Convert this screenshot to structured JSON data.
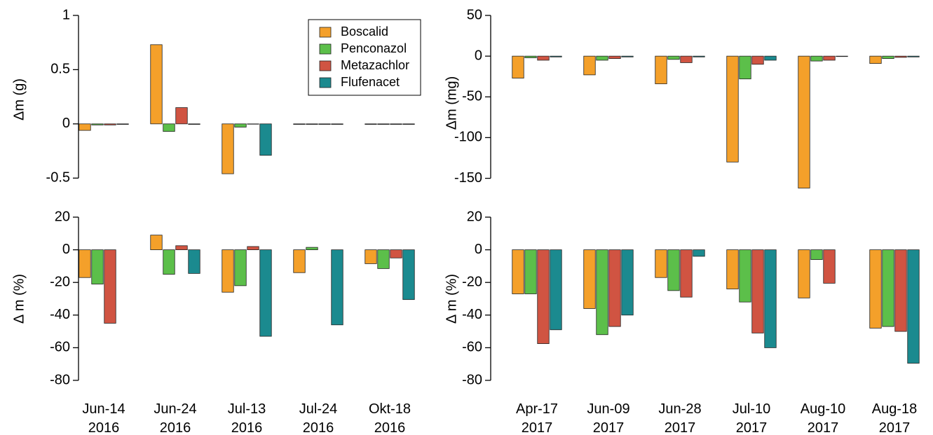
{
  "chart_data": [
    {
      "type": "bar",
      "ylabel": "Δm (g)",
      "legend": "top-right",
      "categories": [
        null,
        null,
        null,
        null,
        null
      ],
      "series": [
        {
          "name": "Boscalid",
          "color": "#f4a02a",
          "values": [
            -0.06,
            0.73,
            -0.46,
            -0.005,
            -0.005
          ]
        },
        {
          "name": "Penconazol",
          "color": "#5cbf4a",
          "values": [
            -0.01,
            -0.07,
            -0.03,
            -0.005,
            -0.005
          ]
        },
        {
          "name": "Metazachlor",
          "color": "#d05442",
          "values": [
            -0.01,
            0.15,
            -0.003,
            -0.005,
            -0.005
          ]
        },
        {
          "name": "Flufenacet",
          "color": "#1b8a8f",
          "values": [
            -0.005,
            -0.005,
            -0.29,
            -0.005,
            -0.005
          ]
        }
      ],
      "ylim": [
        -0.55,
        1
      ],
      "yticks": [
        1,
        0.5,
        0,
        -0.5
      ]
    },
    {
      "type": "bar",
      "ylabel": "Δm (mg)",
      "categories": [
        null,
        null,
        null,
        null,
        null,
        null
      ],
      "series": [
        {
          "color": "#f4a02a",
          "values": [
            -27,
            -23,
            -34,
            -130,
            -162,
            -9
          ]
        },
        {
          "color": "#5cbf4a",
          "values": [
            -2,
            -5,
            -4,
            -28,
            -6,
            -3
          ]
        },
        {
          "color": "#d05442",
          "values": [
            -5,
            -3,
            -8,
            -10,
            -5,
            -1.5
          ]
        },
        {
          "color": "#1b8a8f",
          "values": [
            -1,
            -1,
            -1,
            -5,
            -0.5,
            -1
          ]
        }
      ],
      "ylim": [
        -165,
        50
      ],
      "yticks": [
        50,
        0,
        -50,
        -100,
        -150
      ]
    },
    {
      "type": "bar",
      "ylabel": "Δ m (%)",
      "categories": [
        "Jun-14\n2016",
        "Jun-24\n2016",
        "Jul-13\n2016",
        "Jul-24\n2016",
        "Okt-18\n2016"
      ],
      "series": [
        {
          "color": "#f4a02a",
          "values": [
            -17,
            9,
            -26,
            -14,
            -8.5
          ]
        },
        {
          "color": "#5cbf4a",
          "values": [
            -21,
            -15,
            -22,
            1.5,
            -11.5
          ]
        },
        {
          "color": "#d05442",
          "values": [
            -45,
            2.5,
            2,
            0,
            -5
          ]
        },
        {
          "color": "#1b8a8f",
          "values": [
            0,
            -14.5,
            -53,
            -46,
            -30.5
          ]
        }
      ],
      "ylim": [
        -80,
        20
      ],
      "yticks": [
        20,
        0,
        -20,
        -40,
        -60,
        -80
      ]
    },
    {
      "type": "bar",
      "ylabel": "Δ m (%)",
      "categories": [
        "Apr-17\n2017",
        "Jun-09\n2017",
        "Jun-28\n2017",
        "Jul-10\n2017",
        "Aug-10\n2017",
        "Aug-18\n2017"
      ],
      "series": [
        {
          "color": "#f4a02a",
          "values": [
            -27,
            -36,
            -17,
            -24,
            -29.5,
            -48
          ]
        },
        {
          "color": "#5cbf4a",
          "values": [
            -27,
            -52,
            -25,
            -32,
            -6,
            -47
          ]
        },
        {
          "color": "#d05442",
          "values": [
            -57.5,
            -47,
            -29,
            -51,
            -20.5,
            -50
          ]
        },
        {
          "color": "#1b8a8f",
          "values": [
            -49,
            -40,
            -4,
            -60,
            0,
            -69.5
          ]
        }
      ],
      "ylim": [
        -80,
        20
      ],
      "yticks": [
        20,
        0,
        -20,
        -40,
        -60,
        -80
      ]
    }
  ]
}
